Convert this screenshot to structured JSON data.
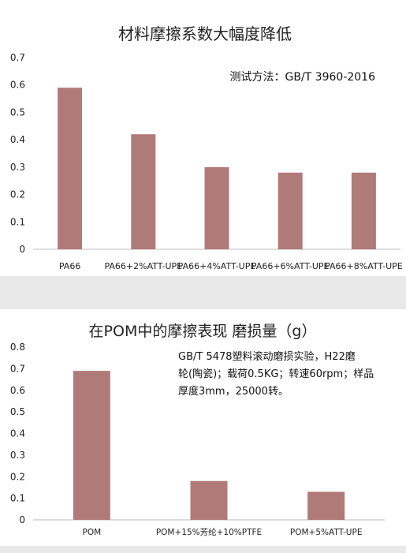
{
  "chart_data": [
    {
      "type": "bar",
      "title": "材料摩擦系数大幅度降低",
      "annotation": "测试方法：GB/T 3960-2016",
      "categories": [
        "PA66",
        "PA66+2%ATT-UPE",
        "PA66+4%ATT-UPE",
        "PA66+6%ATT-UPE",
        "PA66+8%ATT-UPE"
      ],
      "values": [
        0.59,
        0.42,
        0.3,
        0.28,
        0.28
      ],
      "ylim": [
        0,
        0.7
      ],
      "yticks": [
        "0",
        "0.1",
        "0.2",
        "0.3",
        "0.4",
        "0.5",
        "0.6",
        "0.7"
      ],
      "xlabel": "",
      "ylabel": "",
      "grid": false,
      "bar_color": "#b07a78"
    },
    {
      "type": "bar",
      "title": "在POM中的摩擦表现 磨损量（g）",
      "annotation": "GB/T 5478塑料滚动磨损实验，H22磨\n轮(陶瓷)；载荷0.5KG；转速60rpm；样品\n厚度3mm，25000转。",
      "categories": [
        "POM",
        "POM+15%芳纶+10%PTFE",
        "POM+5%ATT-UPE"
      ],
      "values": [
        0.69,
        0.18,
        0.13
      ],
      "ylim": [
        0,
        0.8
      ],
      "yticks": [
        "0",
        "0.1",
        "0.2",
        "0.3",
        "0.4",
        "0.5",
        "0.6",
        "0.7",
        "0.8"
      ],
      "xlabel": "",
      "ylabel": "",
      "grid": false,
      "bar_color": "#b07a78"
    }
  ]
}
